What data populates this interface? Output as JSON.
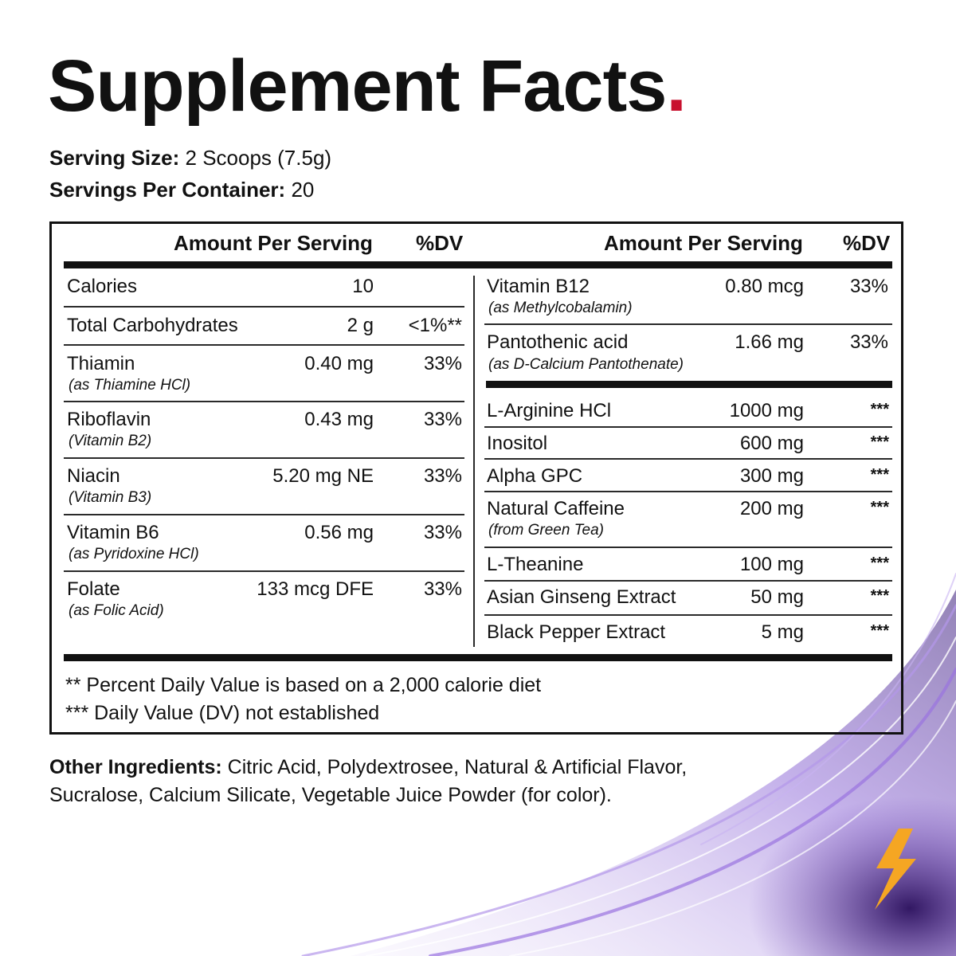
{
  "title": "Supplement Facts",
  "title_dot": ".",
  "serving_size_label": "Serving Size:",
  "serving_size_value": "2 Scoops (7.5g)",
  "servings_per_container_label": "Servings Per Container:",
  "servings_per_container_value": "20",
  "header": {
    "amount": "Amount Per Serving",
    "dv": "%DV"
  },
  "left_rows": [
    {
      "name": "Calories",
      "sub": "",
      "amount": "10",
      "dv": ""
    },
    {
      "name": "Total Carbohydrates",
      "sub": "",
      "amount": "2 g",
      "dv": "<1%**"
    },
    {
      "name": "Thiamin",
      "sub": "(as Thiamine HCl)",
      "amount": "0.40 mg",
      "dv": "33%"
    },
    {
      "name": "Riboflavin",
      "sub": "(Vitamin B2)",
      "amount": "0.43 mg",
      "dv": "33%"
    },
    {
      "name": "Niacin",
      "sub": "(Vitamin B3)",
      "amount": "5.20 mg NE",
      "dv": "33%"
    },
    {
      "name": "Vitamin B6",
      "sub": "(as Pyridoxine HCl)",
      "amount": "0.56 mg",
      "dv": "33%"
    },
    {
      "name": "Folate",
      "sub": "(as Folic Acid)",
      "amount": "133 mcg DFE",
      "dv": "33%"
    }
  ],
  "right_rows": [
    {
      "name": "Vitamin B12",
      "sub": "(as Methylcobalamin)",
      "amount": "0.80 mcg",
      "dv": "33%"
    },
    {
      "name": "Pantothenic acid",
      "sub": "(as D-Calcium Pantothenate)",
      "amount": "1.66 mg",
      "dv": "33%"
    },
    {
      "name": "L-Arginine HCl",
      "sub": "",
      "amount": "1000 mg",
      "dv": "***"
    },
    {
      "name": "Inositol",
      "sub": "",
      "amount": "600 mg",
      "dv": "***"
    },
    {
      "name": "Alpha GPC",
      "sub": "",
      "amount": "300 mg",
      "dv": "***"
    },
    {
      "name": "Natural Caffeine",
      "sub": "(from Green Tea)",
      "amount": "200 mg",
      "dv": "***"
    },
    {
      "name": "L-Theanine",
      "sub": "",
      "amount": "100 mg",
      "dv": "***"
    },
    {
      "name": "Asian Ginseng Extract",
      "sub": "",
      "amount": "50 mg",
      "dv": "***"
    },
    {
      "name": "Black Pepper Extract",
      "sub": "",
      "amount": "5 mg",
      "dv": "***"
    }
  ],
  "footnotes": [
    "** Percent Daily Value is based on a 2,000 calorie diet",
    "*** Daily Value (DV) not established"
  ],
  "other_ingredients_label": "Other Ingredients:",
  "other_ingredients_value": "Citric Acid, Polydextrosee, Natural & Artificial Flavor, Sucralose, Calcium Silicate, Vegetable Juice Powder (for color).",
  "colors": {
    "accent": "#c8102e",
    "swirl": "#6a3fb5",
    "bolt": "#f5a623"
  }
}
